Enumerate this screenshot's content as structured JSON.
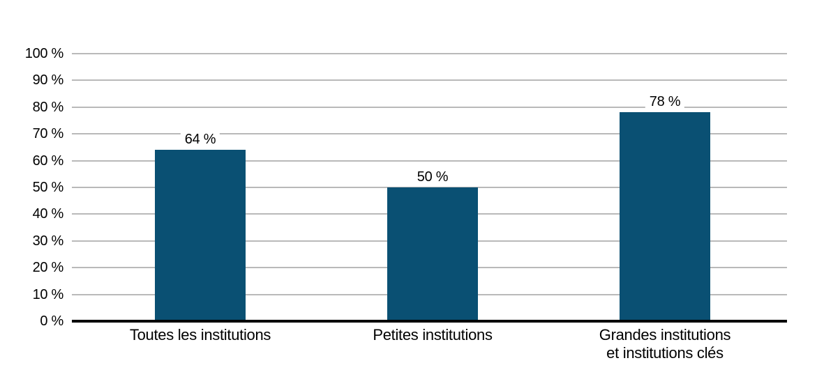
{
  "chart_data": {
    "type": "bar",
    "title": "",
    "xlabel": "",
    "ylabel": "",
    "categories": [
      "Toutes les institutions",
      "Petites institutions",
      "Grandes institutions\net institutions clés"
    ],
    "values": [
      64,
      50,
      78
    ],
    "data_labels": [
      "64 %",
      "50 %",
      "78 %"
    ],
    "ylim": [
      0,
      100
    ],
    "y_tick_step": 10,
    "y_ticks": [
      "100 %",
      "90 %",
      "80 %",
      "70 %",
      "60 %",
      "50 %",
      "40 %",
      "30 %",
      "20 %",
      "10 %",
      "0 %"
    ],
    "grid": "horizontal-gridlines-on",
    "legend": "none",
    "colors": {
      "bar": "#0a5073",
      "gridline": "#b9b9b9",
      "axis": "#000000",
      "text": "#000000",
      "background": "#ffffff"
    }
  }
}
